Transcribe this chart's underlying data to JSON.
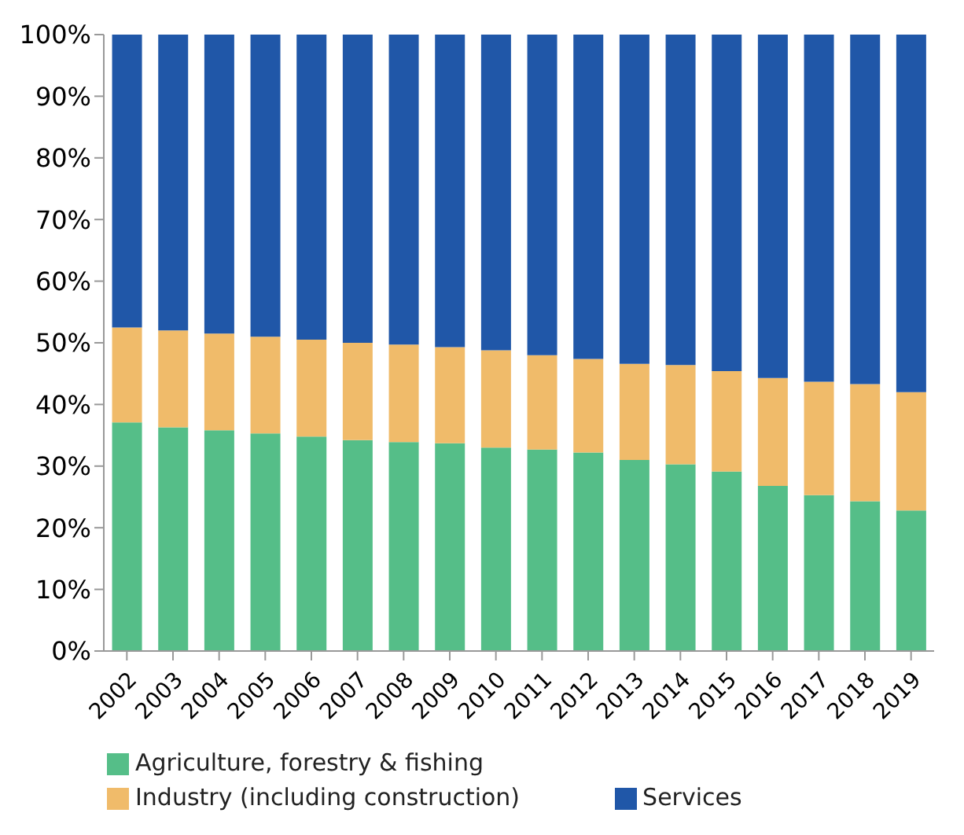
{
  "chart_data": {
    "type": "bar",
    "stacked": true,
    "categories": [
      "2002",
      "2003",
      "2004",
      "2005",
      "2006",
      "2007",
      "2008",
      "2009",
      "2010",
      "2011",
      "2012",
      "2013",
      "2014",
      "2015",
      "2016",
      "2017",
      "2018",
      "2019"
    ],
    "series": [
      {
        "name": "Agriculture, forestry & fishing",
        "color": "#55be88",
        "values": [
          37.1,
          36.3,
          35.8,
          35.3,
          34.8,
          34.2,
          33.9,
          33.7,
          33.0,
          32.7,
          32.2,
          31.0,
          30.3,
          29.1,
          26.8,
          25.3,
          24.3,
          22.8
        ]
      },
      {
        "name": "Industry (including construction)",
        "color": "#f0bb6a",
        "values": [
          15.4,
          15.7,
          15.7,
          15.7,
          15.7,
          15.8,
          15.8,
          15.6,
          15.8,
          15.3,
          15.2,
          15.6,
          16.1,
          16.3,
          17.5,
          18.4,
          19.0,
          19.2
        ]
      },
      {
        "name": "Services",
        "color": "#2057a8",
        "values": [
          47.5,
          48.0,
          48.5,
          49.0,
          49.5,
          50.0,
          50.3,
          50.7,
          51.2,
          52.0,
          52.6,
          53.4,
          53.6,
          54.6,
          55.7,
          56.3,
          56.7,
          58.0
        ]
      }
    ],
    "ylim": [
      0,
      100
    ],
    "yticks": [
      {
        "value": 0,
        "label": "0%"
      },
      {
        "value": 10,
        "label": "10%"
      },
      {
        "value": 20,
        "label": "20%"
      },
      {
        "value": 30,
        "label": "30%"
      },
      {
        "value": 40,
        "label": "40%"
      },
      {
        "value": 50,
        "label": "50%"
      },
      {
        "value": 60,
        "label": "60%"
      },
      {
        "value": 70,
        "label": "70%"
      },
      {
        "value": 80,
        "label": "80%"
      },
      {
        "value": 90,
        "label": "90%"
      },
      {
        "value": 100,
        "label": "100%"
      }
    ],
    "grid": false,
    "legend": "bottom"
  }
}
